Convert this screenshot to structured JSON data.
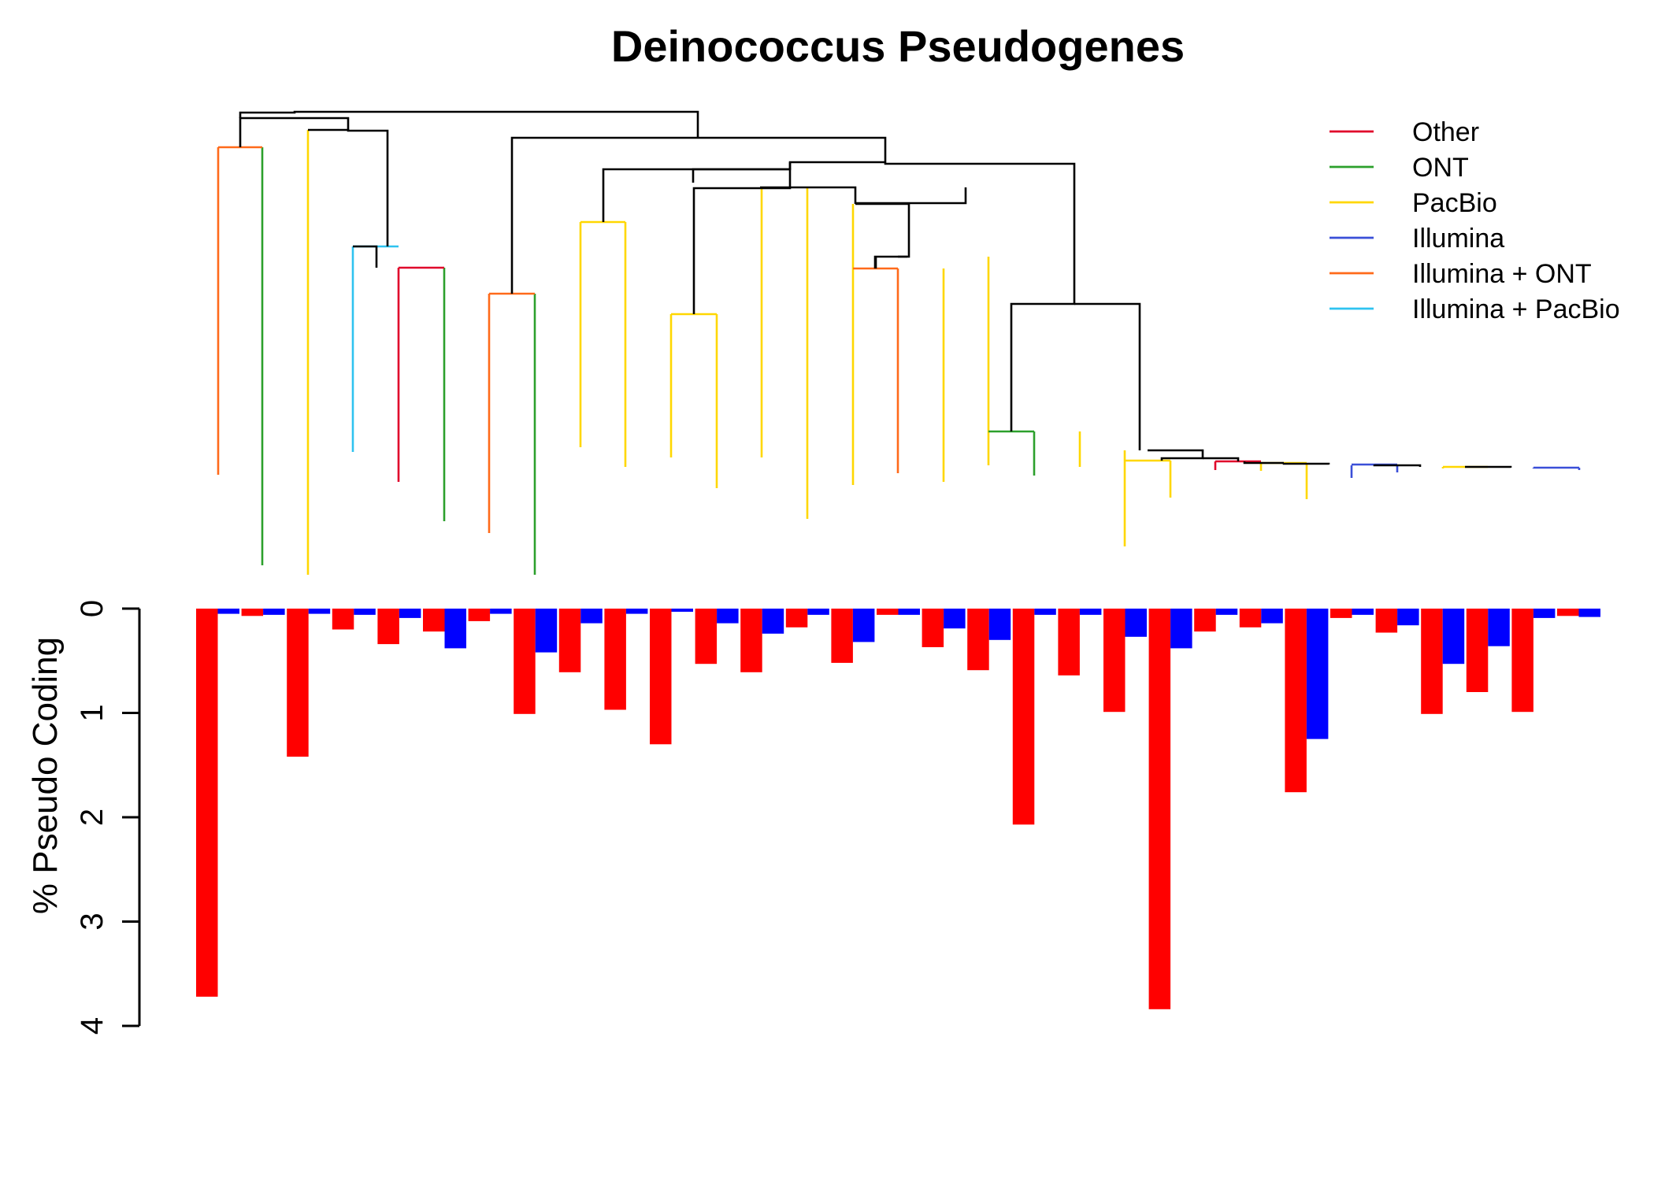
{
  "chart_data": {
    "type": "bar",
    "title": "Deinococcus Pseudogenes",
    "xlabel": "",
    "ylabel": "% Pseudo Coding",
    "ylim": [
      0,
      4
    ],
    "y_axis_inverted": true,
    "y_ticks": [
      "0",
      "1",
      "2",
      "3",
      "4"
    ],
    "grid": false,
    "legend_position": "top-right",
    "series_colors": [
      "#ff0000",
      "#0000ff"
    ],
    "bar_pairs": [
      [
        3.72,
        0.05
      ],
      [
        0.07,
        0.06
      ],
      [
        1.42,
        0.05
      ],
      [
        0.2,
        0.06
      ],
      [
        0.34,
        0.09
      ],
      [
        0.22,
        0.38
      ],
      [
        0.12,
        0.05
      ],
      [
        1.01,
        0.42
      ],
      [
        0.61,
        0.14
      ],
      [
        0.97,
        0.05
      ],
      [
        1.3,
        0.03
      ],
      [
        0.53,
        0.14
      ],
      [
        0.61,
        0.24
      ],
      [
        0.18,
        0.06
      ],
      [
        0.52,
        0.32
      ],
      [
        0.06,
        0.06
      ],
      [
        0.37,
        0.19
      ],
      [
        0.59,
        0.3
      ],
      [
        2.07,
        0.06
      ],
      [
        0.64,
        0.06
      ],
      [
        0.99,
        0.27
      ],
      [
        3.84,
        0.38
      ],
      [
        0.22,
        0.06
      ],
      [
        0.18,
        0.14
      ],
      [
        1.76,
        1.25
      ],
      [
        0.09,
        0.06
      ],
      [
        0.23,
        0.16
      ],
      [
        1.01,
        0.53
      ],
      [
        0.8,
        0.36
      ],
      [
        0.99,
        0.09
      ],
      [
        0.07,
        0.08
      ]
    ],
    "legend": [
      {
        "label": "Other",
        "color": "#e0002a"
      },
      {
        "label": "ONT",
        "color": "#2ca02c"
      },
      {
        "label": "PacBio",
        "color": "#ffd700"
      },
      {
        "label": "Illumina",
        "color": "#3a4fd8"
      },
      {
        "label": "Illumina + ONT",
        "color": "#ff6a1a"
      },
      {
        "label": "Illumina + PacBio",
        "color": "#2fc3f0"
      }
    ],
    "dendrogram": {
      "leaf_colors": [
        "#ff6a1a",
        "#2ca02c",
        "#ffd700",
        "#2fc3f0",
        "#e0002a",
        "#2ca02c",
        "#ff6a1a",
        "#2ca02c",
        "#ffd700",
        "#ffd700",
        "#ffd700",
        "#ffd700",
        "#ffd700",
        "#ffd700",
        "#ffd700",
        "#ff6a1a",
        "#ffd700",
        "#ffd700",
        "#2ca02c",
        "#ffd700",
        "#ffd700",
        "#ffd700",
        "#e0002a",
        "#ffd700",
        "#ffd700",
        "#3a4fd8",
        "#3a4fd8",
        "#ffd700",
        "#ffd700",
        "#3a4fd8",
        "#3a4fd8"
      ],
      "black_color": "#000000"
    }
  }
}
